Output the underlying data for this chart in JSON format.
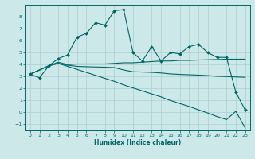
{
  "title": "",
  "xlabel": "Humidex (Indice chaleur)",
  "ylabel": "",
  "xlim": [
    -0.5,
    23.5
  ],
  "ylim": [
    -1.5,
    9.0
  ],
  "yticks": [
    -1,
    0,
    1,
    2,
    3,
    4,
    5,
    6,
    7,
    8
  ],
  "xticks": [
    0,
    1,
    2,
    3,
    4,
    5,
    6,
    7,
    8,
    9,
    10,
    11,
    12,
    13,
    14,
    15,
    16,
    17,
    18,
    19,
    20,
    21,
    22,
    23
  ],
  "bg_color": "#cde8e8",
  "grid_color": "#aacfcf",
  "line_color": "#006666",
  "line1_x": [
    0,
    1,
    2,
    3,
    4,
    5,
    6,
    7,
    8,
    9,
    10,
    11,
    12,
    13,
    14,
    15,
    16,
    17,
    18,
    19,
    20,
    21,
    22,
    23
  ],
  "line1_y": [
    3.2,
    2.9,
    3.9,
    4.5,
    4.8,
    6.3,
    6.6,
    7.5,
    7.3,
    8.5,
    8.6,
    5.0,
    4.3,
    5.5,
    4.3,
    5.0,
    4.9,
    5.5,
    5.7,
    5.0,
    4.6,
    4.6,
    1.7,
    0.2
  ],
  "line2_x": [
    0,
    2,
    3,
    4,
    5,
    6,
    7,
    8,
    9,
    10,
    11,
    12,
    13,
    14,
    15,
    16,
    17,
    18,
    19,
    20,
    21,
    22,
    23
  ],
  "line2_y": [
    3.2,
    3.9,
    4.2,
    4.0,
    4.05,
    4.05,
    4.05,
    4.05,
    4.1,
    4.15,
    4.15,
    4.2,
    4.25,
    4.3,
    4.3,
    4.35,
    4.35,
    4.38,
    4.4,
    4.42,
    4.45,
    4.45,
    4.45
  ],
  "line3_x": [
    0,
    2,
    3,
    4,
    5,
    6,
    7,
    8,
    9,
    10,
    11,
    12,
    13,
    14,
    15,
    16,
    17,
    18,
    19,
    20,
    21,
    22,
    23
  ],
  "line3_y": [
    3.2,
    3.9,
    4.1,
    3.95,
    3.85,
    3.82,
    3.8,
    3.78,
    3.75,
    3.55,
    3.4,
    3.38,
    3.35,
    3.3,
    3.22,
    3.18,
    3.15,
    3.12,
    3.08,
    3.02,
    3.0,
    2.97,
    2.94
  ],
  "line4_x": [
    0,
    2,
    3,
    4,
    5,
    6,
    7,
    8,
    9,
    10,
    11,
    12,
    13,
    14,
    15,
    16,
    17,
    18,
    19,
    20,
    21,
    22,
    23
  ],
  "line4_y": [
    3.2,
    3.9,
    4.1,
    3.85,
    3.6,
    3.35,
    3.1,
    2.85,
    2.6,
    2.3,
    2.05,
    1.8,
    1.55,
    1.3,
    1.0,
    0.75,
    0.5,
    0.22,
    -0.05,
    -0.35,
    -0.6,
    0.1,
    -1.3
  ]
}
